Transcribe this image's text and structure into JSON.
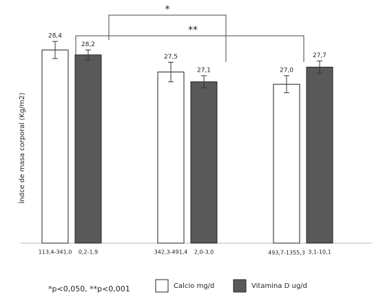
{
  "chart_data": {
    "type": "bar",
    "ylabel": "Índce de masa corporal (Kg/m2)",
    "ylim": [
      20.5,
      29.6
    ],
    "series": [
      {
        "name": "Calcio mg/d",
        "color": "#ffffff",
        "categories": [
          "113,4-341,0",
          "342,3-491,4",
          "493,7-1355,3"
        ],
        "values": [
          28.4,
          27.5,
          27.0
        ],
        "value_labels": [
          "28,4",
          "27,5",
          "27,0"
        ],
        "errors": [
          0.35,
          0.4,
          0.35
        ]
      },
      {
        "name": "Vitamina D ug/d",
        "color": "#595959",
        "categories": [
          "0,2-1,9",
          "2,0-3,0",
          "3,1-10,1"
        ],
        "values": [
          28.2,
          27.1,
          27.7
        ],
        "value_labels": [
          "28,2",
          "27,1",
          "27,7"
        ],
        "errors": [
          0.2,
          0.25,
          0.25
        ]
      }
    ],
    "annotations": [
      "*",
      "**"
    ],
    "footnote": "*p<0,050, **p<0,001"
  }
}
